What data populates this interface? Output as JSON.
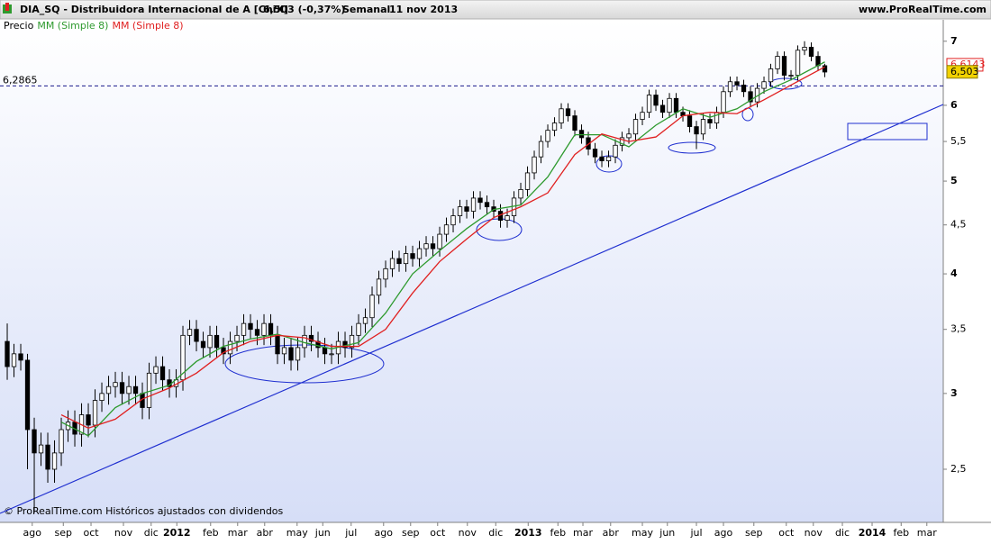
{
  "chart_data": {
    "type": "candlestick",
    "title": "DIA_SQ - Distribuidora Internacional de A [ChiX]",
    "quote": "6,503 (-0,37%)",
    "period": "Semanal",
    "date": "11 nov 2013",
    "site": "www.ProRealTime.com",
    "footer": "© ProRealTime.com Históricos ajustados con dividendos",
    "log_scale": true,
    "ylim": [
      2.2,
      7.37
    ],
    "yticks": [
      {
        "value": 2.5,
        "label": "2,5"
      },
      3,
      {
        "value": 3.5,
        "label": "3,5"
      },
      4,
      {
        "value": 4.5,
        "label": "4,5"
      },
      5,
      {
        "value": 5.5,
        "label": "5,5"
      },
      6,
      7
    ],
    "xlim": [
      -1.07,
      138.53
    ],
    "xticks": [
      {
        "value": 3.7,
        "label": "ago"
      },
      {
        "value": 8.3,
        "label": "sep"
      },
      {
        "value": 12.4,
        "label": "oct"
      },
      {
        "value": 17.2,
        "label": "nov"
      },
      {
        "value": 21.3,
        "label": "dic"
      },
      {
        "value": 25.1,
        "label": "2012"
      },
      {
        "value": 30.1,
        "label": "feb"
      },
      {
        "value": 34.1,
        "label": "mar"
      },
      {
        "value": 38.1,
        "label": "abr"
      },
      {
        "value": 42.9,
        "label": "may"
      },
      {
        "value": 46.7,
        "label": "jun"
      },
      {
        "value": 50.9,
        "label": "jul"
      },
      {
        "value": 55.7,
        "label": "ago"
      },
      {
        "value": 59.7,
        "label": "sep"
      },
      {
        "value": 63.7,
        "label": "oct"
      },
      {
        "value": 68.1,
        "label": "nov"
      },
      {
        "value": 72.3,
        "label": "dic"
      },
      {
        "value": 77.1,
        "label": "2013"
      },
      {
        "value": 81.5,
        "label": "feb"
      },
      {
        "value": 85.2,
        "label": "mar"
      },
      {
        "value": 89.3,
        "label": "abr"
      },
      {
        "value": 94.0,
        "label": "may"
      },
      {
        "value": 97.7,
        "label": "jun"
      },
      {
        "value": 102.0,
        "label": "jul"
      },
      {
        "value": 106.0,
        "label": "ago"
      },
      {
        "value": 110.5,
        "label": "sep"
      },
      {
        "value": 115.3,
        "label": "oct"
      },
      {
        "value": 119.3,
        "label": "nov"
      },
      {
        "value": 123.6,
        "label": "dic"
      },
      {
        "value": 128.0,
        "label": "2014"
      },
      {
        "value": 132.3,
        "label": "feb"
      },
      {
        "value": 136.1,
        "label": "mar"
      }
    ],
    "reference_line": {
      "value": 6.2865,
      "label": "6,2865",
      "color": "#1a1a8c"
    },
    "last_price": {
      "value": 6.503,
      "label": "6,503",
      "color": "#f2d200"
    },
    "ma_price": {
      "value": 6.6143,
      "label": "6,6143",
      "color": "#e02020"
    },
    "series": [
      {
        "name": "Precio",
        "color": "#000000",
        "x": [
          0,
          1,
          2,
          3,
          4,
          5,
          6,
          7,
          8,
          9,
          10,
          11,
          12,
          13,
          14,
          15,
          16,
          17,
          18,
          19,
          20,
          21,
          22,
          23,
          24,
          25,
          26,
          27,
          28,
          29,
          30,
          31,
          32,
          33,
          34,
          35,
          36,
          37,
          38,
          39,
          40,
          41,
          42,
          43,
          44,
          45,
          46,
          47,
          48,
          49,
          50,
          51,
          52,
          53,
          54,
          55,
          56,
          57,
          58,
          59,
          60,
          61,
          62,
          63,
          64,
          65,
          66,
          67,
          68,
          69,
          70,
          71,
          72,
          73,
          74,
          75,
          76,
          77,
          78,
          79,
          80,
          81,
          82,
          83,
          84,
          85,
          86,
          87,
          88,
          89,
          90,
          91,
          92,
          93,
          94,
          95,
          96,
          97,
          98,
          99,
          100,
          101,
          102,
          103,
          104,
          105,
          106,
          107,
          108,
          109,
          110,
          111,
          112,
          113,
          114,
          115,
          116,
          117,
          118,
          119,
          120,
          121
        ],
        "open": [
          3.4,
          3.2,
          3.3,
          3.25,
          2.75,
          2.6,
          2.65,
          2.5,
          2.6,
          2.75,
          2.8,
          2.72,
          2.85,
          2.78,
          2.95,
          3.0,
          3.05,
          3.08,
          3.0,
          3.05,
          3.0,
          2.9,
          3.15,
          3.2,
          3.1,
          3.05,
          3.1,
          3.45,
          3.5,
          3.4,
          3.35,
          3.45,
          3.35,
          3.3,
          3.4,
          3.45,
          3.55,
          3.5,
          3.45,
          3.55,
          3.45,
          3.3,
          3.35,
          3.25,
          3.35,
          3.45,
          3.4,
          3.35,
          3.3,
          3.3,
          3.4,
          3.35,
          3.45,
          3.55,
          3.6,
          3.8,
          3.95,
          4.05,
          4.15,
          4.1,
          4.2,
          4.15,
          4.25,
          4.3,
          4.25,
          4.4,
          4.5,
          4.6,
          4.7,
          4.65,
          4.8,
          4.75,
          4.7,
          4.65,
          4.55,
          4.6,
          4.8,
          4.9,
          5.1,
          5.3,
          5.5,
          5.65,
          5.75,
          5.95,
          5.85,
          5.65,
          5.55,
          5.4,
          5.3,
          5.25,
          5.3,
          5.45,
          5.55,
          5.6,
          5.8,
          5.9,
          6.15,
          6.0,
          5.9,
          6.1,
          5.9,
          5.85,
          5.7,
          5.6,
          5.8,
          5.75,
          5.9,
          6.2,
          6.35,
          6.3,
          6.2,
          6.05,
          6.25,
          6.35,
          6.55,
          6.75,
          6.45,
          6.45,
          6.85,
          6.9,
          6.75,
          6.6
        ],
        "high": [
          3.55,
          3.38,
          3.38,
          3.3,
          2.83,
          2.73,
          2.73,
          2.68,
          2.83,
          2.88,
          2.88,
          2.93,
          2.93,
          3.03,
          3.08,
          3.13,
          3.16,
          3.16,
          3.13,
          3.13,
          3.08,
          3.23,
          3.28,
          3.28,
          3.18,
          3.18,
          3.53,
          3.58,
          3.58,
          3.48,
          3.53,
          3.53,
          3.43,
          3.48,
          3.53,
          3.63,
          3.63,
          3.58,
          3.63,
          3.63,
          3.53,
          3.43,
          3.43,
          3.43,
          3.53,
          3.53,
          3.48,
          3.43,
          3.38,
          3.48,
          3.48,
          3.53,
          3.63,
          3.68,
          3.88,
          4.03,
          4.13,
          4.23,
          4.23,
          4.28,
          4.28,
          4.33,
          4.38,
          4.38,
          4.48,
          4.58,
          4.68,
          4.78,
          4.78,
          4.88,
          4.88,
          4.83,
          4.78,
          4.73,
          4.68,
          4.88,
          4.98,
          5.18,
          5.38,
          5.58,
          5.73,
          5.83,
          6.03,
          6.03,
          5.93,
          5.73,
          5.63,
          5.48,
          5.38,
          5.38,
          5.53,
          5.63,
          5.68,
          5.88,
          5.98,
          6.23,
          6.23,
          6.08,
          6.18,
          6.18,
          5.98,
          5.93,
          5.78,
          5.88,
          5.88,
          5.98,
          6.28,
          6.43,
          6.43,
          6.38,
          6.28,
          6.33,
          6.43,
          6.63,
          6.83,
          6.83,
          6.53,
          6.93,
          7.0,
          6.98,
          6.83,
          6.63
        ],
        "low": [
          3.1,
          3.12,
          3.17,
          2.5,
          2.25,
          2.52,
          2.42,
          2.42,
          2.52,
          2.67,
          2.64,
          2.64,
          2.7,
          2.7,
          2.87,
          2.92,
          2.97,
          2.92,
          2.92,
          2.92,
          2.82,
          2.82,
          3.07,
          3.02,
          2.97,
          2.97,
          3.02,
          3.37,
          3.32,
          3.27,
          3.27,
          3.27,
          3.22,
          3.22,
          3.32,
          3.37,
          3.42,
          3.37,
          3.37,
          3.37,
          3.22,
          3.22,
          3.17,
          3.17,
          3.27,
          3.32,
          3.27,
          3.22,
          3.22,
          3.22,
          3.27,
          3.27,
          3.37,
          3.47,
          3.52,
          3.72,
          3.87,
          3.97,
          4.02,
          4.02,
          4.07,
          4.07,
          4.17,
          4.17,
          4.17,
          4.32,
          4.42,
          4.52,
          4.57,
          4.57,
          4.67,
          4.62,
          4.57,
          4.47,
          4.47,
          4.52,
          4.72,
          4.82,
          5.02,
          5.22,
          5.42,
          5.57,
          5.67,
          5.77,
          5.57,
          5.47,
          5.32,
          5.22,
          5.17,
          5.17,
          5.22,
          5.37,
          5.47,
          5.52,
          5.72,
          5.82,
          5.92,
          5.82,
          5.82,
          5.82,
          5.77,
          5.62,
          5.4,
          5.52,
          5.67,
          5.67,
          5.82,
          6.12,
          6.22,
          6.12,
          5.97,
          5.97,
          6.17,
          6.27,
          6.47,
          6.37,
          6.37,
          6.37,
          6.77,
          6.67,
          6.52,
          6.42
        ],
        "close": [
          3.2,
          3.3,
          3.25,
          2.75,
          2.6,
          2.65,
          2.5,
          2.6,
          2.75,
          2.8,
          2.72,
          2.85,
          2.78,
          2.95,
          3.0,
          3.05,
          3.08,
          3.0,
          3.05,
          3.0,
          2.9,
          3.15,
          3.2,
          3.1,
          3.05,
          3.1,
          3.45,
          3.5,
          3.4,
          3.35,
          3.45,
          3.35,
          3.3,
          3.4,
          3.45,
          3.55,
          3.5,
          3.45,
          3.55,
          3.45,
          3.3,
          3.35,
          3.25,
          3.35,
          3.45,
          3.4,
          3.35,
          3.3,
          3.3,
          3.4,
          3.35,
          3.45,
          3.55,
          3.6,
          3.8,
          3.95,
          4.05,
          4.15,
          4.1,
          4.2,
          4.15,
          4.25,
          4.3,
          4.25,
          4.4,
          4.5,
          4.6,
          4.7,
          4.65,
          4.8,
          4.75,
          4.7,
          4.65,
          4.55,
          4.6,
          4.8,
          4.9,
          5.1,
          5.3,
          5.5,
          5.65,
          5.75,
          5.95,
          5.85,
          5.65,
          5.55,
          5.4,
          5.3,
          5.25,
          5.3,
          5.45,
          5.55,
          5.6,
          5.8,
          5.9,
          6.15,
          6.0,
          5.9,
          6.1,
          5.9,
          5.85,
          5.7,
          5.6,
          5.8,
          5.75,
          5.9,
          6.2,
          6.35,
          6.3,
          6.2,
          6.05,
          6.25,
          6.35,
          6.55,
          6.75,
          6.45,
          6.45,
          6.85,
          6.9,
          6.75,
          6.6,
          6.5
        ]
      },
      {
        "name": "MM (Simple 8)",
        "color": "#2e9a2e",
        "x": [
          8,
          12,
          16,
          20,
          24,
          28,
          32,
          36,
          40,
          44,
          48,
          52,
          56,
          60,
          64,
          68,
          72,
          76,
          80,
          84,
          88,
          92,
          96,
          100,
          104,
          108,
          112,
          116,
          121
        ],
        "values": [
          2.8,
          2.71,
          2.9,
          3.0,
          3.06,
          3.24,
          3.36,
          3.42,
          3.46,
          3.39,
          3.34,
          3.39,
          3.64,
          4.0,
          4.23,
          4.46,
          4.67,
          4.72,
          5.05,
          5.59,
          5.59,
          5.43,
          5.72,
          5.95,
          5.83,
          5.95,
          6.2,
          6.38,
          6.66
        ]
      },
      {
        "name": "MM (Simple 8)",
        "color": "#e02020",
        "x": [
          8,
          12,
          16,
          20,
          24,
          28,
          32,
          36,
          40,
          44,
          48,
          52,
          56,
          60,
          64,
          68,
          72,
          76,
          80,
          84,
          88,
          92,
          96,
          100,
          104,
          108,
          112,
          116,
          121
        ],
        "values": [
          2.85,
          2.76,
          2.82,
          2.96,
          3.04,
          3.15,
          3.31,
          3.4,
          3.45,
          3.43,
          3.36,
          3.36,
          3.5,
          3.82,
          4.12,
          4.35,
          4.58,
          4.7,
          4.86,
          5.33,
          5.6,
          5.5,
          5.56,
          5.85,
          5.9,
          5.88,
          6.08,
          6.3,
          6.58
        ]
      }
    ]
  }
}
